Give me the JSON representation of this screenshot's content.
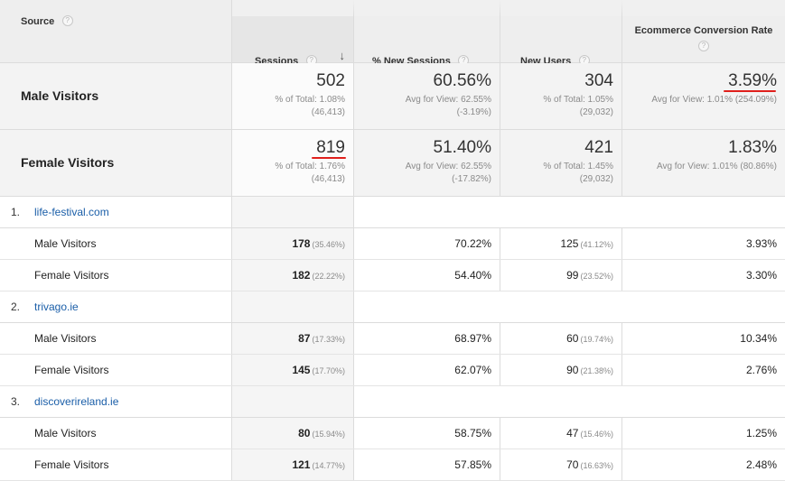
{
  "columns": {
    "source": "Source",
    "sessions": "Sessions",
    "new_sessions": "% New Sessions",
    "new_users": "New Users",
    "conversion": "Ecommerce Conversion Rate"
  },
  "help_glyph": "?",
  "sort_glyph": "↓",
  "segments": [
    {
      "label": "Male Visitors",
      "sessions": {
        "value": "502",
        "line1": "% of Total: 1.08%",
        "line2": "(46,413)"
      },
      "new_sessions": {
        "value": "60.56%",
        "line1": "Avg for View: 62.55%",
        "line2": "(-3.19%)"
      },
      "new_users": {
        "value": "304",
        "line1": "% of Total: 1.05%",
        "line2": "(29,032)"
      },
      "conversion": {
        "value": "3.59%",
        "line1": "Avg for View: 1.01% (254.09%)"
      }
    },
    {
      "label": "Female Visitors",
      "sessions": {
        "value": "819",
        "line1": "% of Total: 1.76%",
        "line2": "(46,413)"
      },
      "new_sessions": {
        "value": "51.40%",
        "line1": "Avg for View: 62.55%",
        "line2": "(-17.82%)"
      },
      "new_users": {
        "value": "421",
        "line1": "% of Total: 1.45%",
        "line2": "(29,032)"
      },
      "conversion": {
        "value": "1.83%",
        "line1": "Avg for View: 1.01% (80.86%)"
      }
    }
  ],
  "sources": [
    {
      "num": "1.",
      "name": "life-festival.com",
      "rows": [
        {
          "label": "Male Visitors",
          "sessions": "178",
          "sessions_pct": "(35.46%)",
          "new_sessions": "70.22%",
          "new_users": "125",
          "new_users_pct": "(41.12%)",
          "conversion": "3.93%"
        },
        {
          "label": "Female Visitors",
          "sessions": "182",
          "sessions_pct": "(22.22%)",
          "new_sessions": "54.40%",
          "new_users": "99",
          "new_users_pct": "(23.52%)",
          "conversion": "3.30%"
        }
      ]
    },
    {
      "num": "2.",
      "name": "trivago.ie",
      "rows": [
        {
          "label": "Male Visitors",
          "sessions": "87",
          "sessions_pct": "(17.33%)",
          "new_sessions": "68.97%",
          "new_users": "60",
          "new_users_pct": "(19.74%)",
          "conversion": "10.34%"
        },
        {
          "label": "Female Visitors",
          "sessions": "145",
          "sessions_pct": "(17.70%)",
          "new_sessions": "62.07%",
          "new_users": "90",
          "new_users_pct": "(21.38%)",
          "conversion": "2.76%"
        }
      ]
    },
    {
      "num": "3.",
      "name": "discoverireland.ie",
      "rows": [
        {
          "label": "Male Visitors",
          "sessions": "80",
          "sessions_pct": "(15.94%)",
          "new_sessions": "58.75%",
          "new_users": "47",
          "new_users_pct": "(15.46%)",
          "conversion": "1.25%"
        },
        {
          "label": "Female Visitors",
          "sessions": "121",
          "sessions_pct": "(14.77%)",
          "new_sessions": "57.85%",
          "new_users": "70",
          "new_users_pct": "(16.63%)",
          "conversion": "2.48%"
        }
      ]
    }
  ],
  "colors": {
    "link": "#1a5ea8",
    "highlight": "#e0201c"
  }
}
